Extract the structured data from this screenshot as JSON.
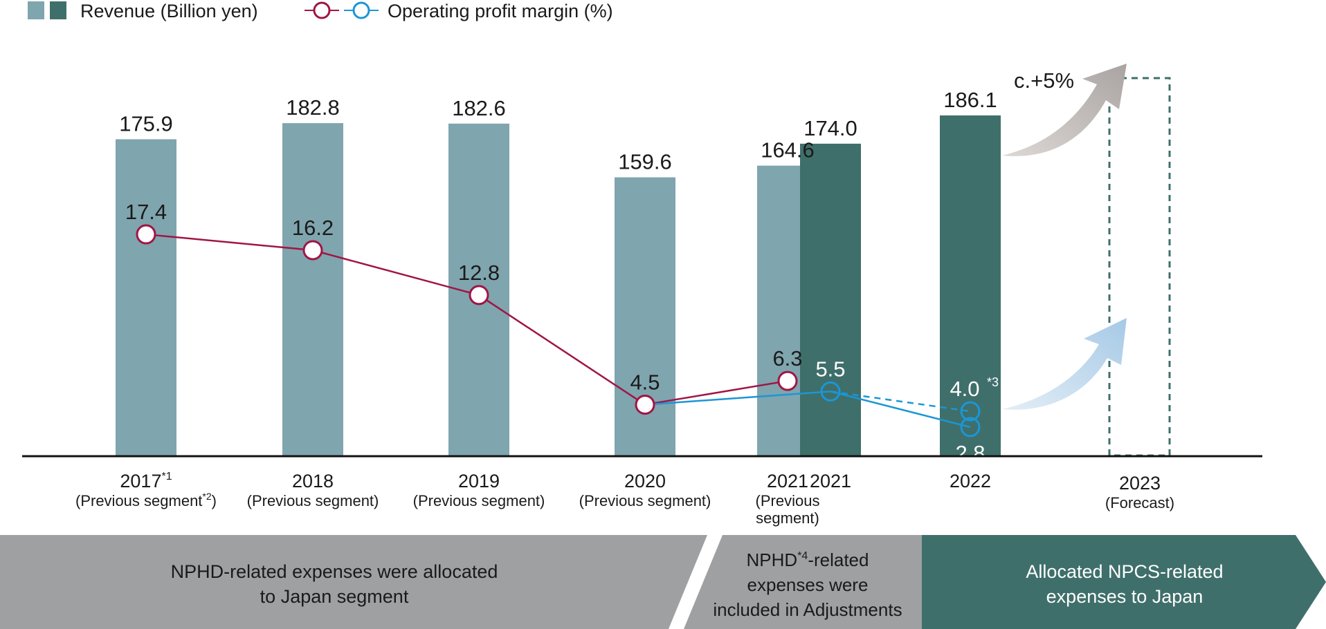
{
  "legend": {
    "revenue_label": "Revenue (Billion yen)",
    "margin_label": "Operating profit margin (%)"
  },
  "colors": {
    "revenue_prev": "#7fa5ae",
    "revenue_new": "#3f6f6b",
    "margin_prev": "#a01544",
    "margin_new": "#1b96d6",
    "growth_arrow_revenue": "#b9b6b4",
    "growth_arrow_margin": "#b7d4ea",
    "banner_gray": "#9fa0a2",
    "banner_green": "#3f6f6b"
  },
  "chart_data": {
    "type": "bar",
    "categories": [
      {
        "id": "2017",
        "year": "2017",
        "sup": "*1",
        "sub1": "(Previous segment",
        "sub1_sup": "*2",
        "sub1_end": ")",
        "sub2": ""
      },
      {
        "id": "2018",
        "year": "2018",
        "sup": "",
        "sub1": "(Previous segment)",
        "sub1_sup": "",
        "sub1_end": "",
        "sub2": ""
      },
      {
        "id": "2019",
        "year": "2019",
        "sup": "",
        "sub1": "(Previous segment)",
        "sub1_sup": "",
        "sub1_end": "",
        "sub2": ""
      },
      {
        "id": "2020",
        "year": "2020",
        "sup": "",
        "sub1": "(Previous segment)",
        "sub1_sup": "",
        "sub1_end": "",
        "sub2": ""
      },
      {
        "id": "2021p",
        "year": "2021",
        "sup": "",
        "sub1": "(Previous",
        "sub1_sup": "",
        "sub1_end": "",
        "sub2": "segment)"
      },
      {
        "id": "2021",
        "year": "2021",
        "sup": "",
        "sub1": "",
        "sub1_sup": "",
        "sub1_end": "",
        "sub2": ""
      },
      {
        "id": "2022",
        "year": "2022",
        "sup": "",
        "sub1": "",
        "sub1_sup": "",
        "sub1_end": "",
        "sub2": ""
      },
      {
        "id": "2023",
        "year": "2023",
        "sup": "",
        "sub1": "(Forecast)",
        "sub1_sup": "",
        "sub1_end": "",
        "sub2": ""
      }
    ],
    "revenue": [
      {
        "category": "2017",
        "value": 175.9,
        "segment": "previous"
      },
      {
        "category": "2018",
        "value": 182.8,
        "segment": "previous"
      },
      {
        "category": "2019",
        "value": 182.6,
        "segment": "previous"
      },
      {
        "category": "2020",
        "value": 159.6,
        "segment": "previous"
      },
      {
        "category": "2021p",
        "value": 164.6,
        "segment": "previous"
      },
      {
        "category": "2021",
        "value": 174.0,
        "segment": "new"
      },
      {
        "category": "2022",
        "value": 186.1,
        "segment": "new"
      }
    ],
    "margin_previous": [
      {
        "category": "2017",
        "value": 17.4
      },
      {
        "category": "2018",
        "value": 16.2
      },
      {
        "category": "2019",
        "value": 12.8
      },
      {
        "category": "2020",
        "value": 4.5
      },
      {
        "category": "2021p",
        "value": 6.3
      }
    ],
    "margin_new": [
      {
        "category": "2020",
        "value": 4.5
      },
      {
        "category": "2021",
        "value": 5.5
      },
      {
        "category": "2022",
        "value": 2.8
      }
    ],
    "margin_new_alt": {
      "from": {
        "category": "2021",
        "value": 5.5
      },
      "to": {
        "category": "2022",
        "value": 4.0,
        "label": "4.0",
        "sup": "*3"
      }
    },
    "forecast": {
      "category": "2023",
      "revenue_growth_label": "c.+5%"
    }
  },
  "banners": [
    {
      "lines": [
        "NPHD-related expenses were allocated",
        "to Japan segment"
      ]
    },
    {
      "lines": [
        [
          "NPHD",
          "*4",
          "-related"
        ],
        "expenses were",
        "included in Adjustments"
      ]
    },
    {
      "lines": [
        "Allocated NPCS-related",
        "expenses to Japan"
      ]
    }
  ]
}
